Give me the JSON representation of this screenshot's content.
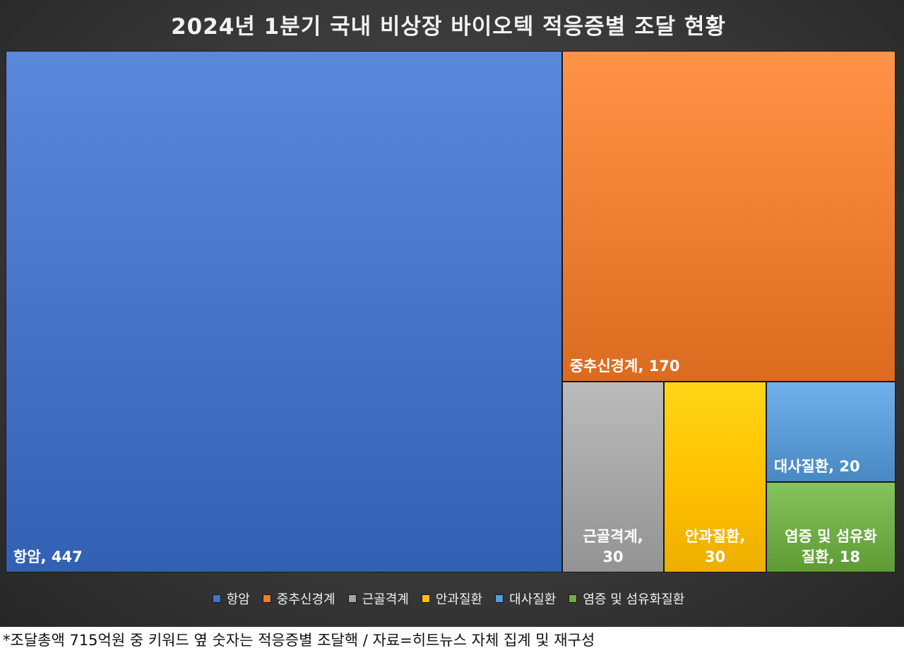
{
  "chart_data": {
    "type": "treemap",
    "title": "2024년 1분기 국내 비상장 바이오텍 적응증별 조달 현황",
    "series": [
      {
        "name": "항암",
        "value": 447,
        "color": "#4472C4",
        "label_lines": [
          "항암, 447"
        ]
      },
      {
        "name": "중추신경계",
        "value": 170,
        "color": "#ED7D31",
        "label_lines": [
          "중추신경계, 170"
        ]
      },
      {
        "name": "근골격계",
        "value": 30,
        "color": "#A5A5A5",
        "label_lines": [
          "근골격계,",
          "30"
        ]
      },
      {
        "name": "안과질환",
        "value": 30,
        "color": "#FFC000",
        "label_lines": [
          "안과질환,",
          "30"
        ]
      },
      {
        "name": "대사질환",
        "value": 20,
        "color": "#5B9BD5",
        "label_lines": [
          "대사질환, 20"
        ]
      },
      {
        "name": "염증 및 섬유화질환",
        "value": 18,
        "color": "#70AD47",
        "label_lines": [
          "염증 및 섬유화",
          "질환, 18"
        ]
      }
    ],
    "legend_position": "bottom"
  },
  "footnote": "*조달총액 715억원 중 키워드 옆 숫자는 적응증별 조달핵 / 자료=히트뉴스 자체 집계 및 재구성"
}
